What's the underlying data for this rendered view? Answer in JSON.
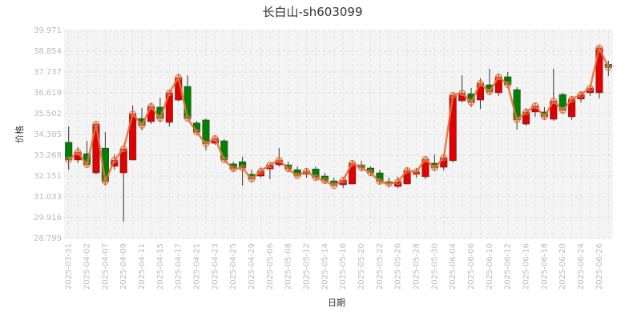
{
  "chart_data": {
    "type": "candlestick",
    "title": "长白山-sh603099",
    "x_label": "日期",
    "y_label": "价格",
    "categories": [
      "2025-03-31",
      null,
      "2025-04-02",
      null,
      "2025-04-07",
      null,
      "2025-04-09",
      null,
      "2025-04-11",
      null,
      "2025-04-15",
      null,
      "2025-04-17",
      null,
      "2025-04-21",
      null,
      "2025-04-23",
      null,
      "2025-04-25",
      null,
      "2025-04-29",
      null,
      "2025-05-06",
      null,
      "2025-05-08",
      null,
      "2025-05-12",
      null,
      "2025-05-14",
      null,
      "2025-05-16",
      null,
      "2025-05-20",
      null,
      "2025-05-22",
      null,
      "2025-05-26",
      null,
      "2025-05-28",
      null,
      "2025-05-30",
      null,
      "2025-06-04",
      null,
      "2025-06-06",
      null,
      "2025-06-10",
      null,
      "2025-06-12",
      null,
      "2025-06-16",
      null,
      "2025-06-18",
      null,
      "2025-06-20",
      null,
      "2025-06-24",
      null,
      "2025-06-26",
      null
    ],
    "open": [
      33.96,
      33.01,
      33.35,
      32.32,
      33.65,
      32.67,
      32.32,
      33.01,
      35.24,
      35.07,
      35.85,
      35.03,
      36.23,
      36.96,
      35.0,
      35.16,
      33.91,
      34.04,
      32.8,
      32.92,
      32.24,
      32.15,
      32.53,
      32.75,
      32.75,
      32.49,
      32.24,
      32.53,
      32.15,
      31.89,
      31.68,
      31.72,
      32.75,
      32.58,
      32.32,
      31.85,
      31.59,
      31.72,
      32.24,
      32.11,
      32.84,
      32.62,
      32.97,
      36.19,
      36.57,
      36.23,
      37.05,
      36.62,
      37.48,
      36.79,
      34.94,
      35.59,
      35.59,
      35.2,
      36.53,
      35.33,
      36.28,
      36.62,
      36.62,
      38.15
    ],
    "high": [
      34.81,
      33.7,
      34.04,
      35.03,
      34.51,
      33.31,
      33.78,
      35.93,
      35.8,
      36.1,
      36.36,
      36.79,
      37.65,
      37.56,
      35.1,
      35.24,
      34.3,
      34.13,
      32.92,
      33.18,
      32.49,
      32.62,
      32.84,
      33.65,
      32.92,
      32.66,
      32.58,
      32.66,
      32.32,
      32.06,
      32.11,
      33.01,
      32.97,
      32.66,
      32.49,
      32.06,
      32.11,
      32.62,
      32.58,
      33.18,
      33.31,
      33.31,
      36.58,
      37.56,
      36.88,
      37.39,
      37.91,
      37.65,
      37.74,
      36.92,
      35.8,
      36.1,
      35.85,
      37.91,
      36.62,
      36.45,
      36.7,
      37.0,
      39.15,
      38.34
    ],
    "low": [
      32.49,
      32.84,
      32.66,
      32.24,
      31.63,
      32.49,
      29.7,
      33.01,
      34.6,
      34.94,
      35.03,
      34.81,
      36.15,
      35.16,
      34.4,
      33.52,
      33.82,
      32.92,
      32.36,
      31.63,
      31.81,
      32.06,
      31.98,
      32.66,
      32.36,
      32.06,
      32.06,
      31.94,
      31.76,
      31.55,
      31.51,
      31.72,
      32.45,
      32.19,
      31.72,
      31.59,
      31.51,
      31.72,
      32.06,
      31.98,
      32.41,
      32.45,
      32.88,
      36.1,
      35.85,
      35.76,
      36.53,
      36.45,
      36.88,
      34.64,
      34.86,
      35.33,
      35.16,
      35.11,
      35.5,
      35.16,
      36.1,
      36.45,
      36.32,
      37.52
    ],
    "close": [
      33.01,
      33.44,
      32.75,
      34.94,
      31.85,
      33.01,
      33.61,
      35.5,
      34.86,
      35.89,
      35.24,
      36.62,
      37.44,
      35.24,
      34.5,
      33.87,
      34.17,
      33.01,
      32.53,
      32.58,
      31.98,
      32.41,
      32.75,
      33.01,
      32.53,
      32.15,
      32.41,
      32.06,
      31.89,
      31.63,
      31.93,
      32.84,
      32.58,
      32.32,
      31.85,
      31.72,
      31.85,
      32.45,
      32.37,
      33.05,
      32.58,
      33.14,
      36.49,
      36.62,
      36.1,
      37.13,
      36.66,
      37.48,
      37.05,
      35.16,
      35.59,
      35.93,
      35.33,
      36.19,
      35.67,
      36.28,
      36.53,
      36.88,
      39.03,
      37.98
    ],
    "up_color": "#e00000",
    "down_color": "#008000",
    "line_color": "#e8703a",
    "ylim": [
      28.799,
      39.971
    ],
    "yticks": [
      28.799,
      29.916,
      31.033,
      32.151,
      33.268,
      34.385,
      35.502,
      36.619,
      37.737,
      38.854,
      39.971
    ],
    "grid": true
  }
}
